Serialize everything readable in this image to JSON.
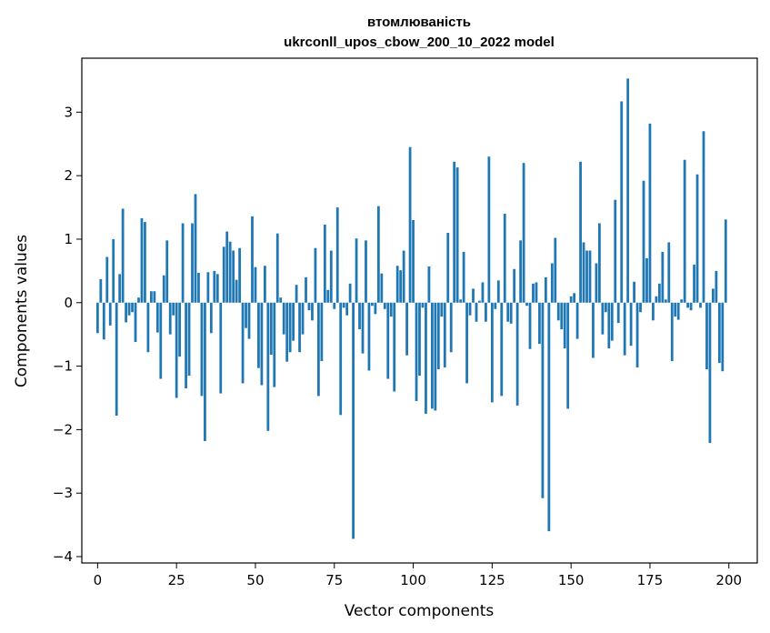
{
  "chart_data": {
    "type": "bar",
    "title": "втомлюваність",
    "subtitle": "ukrconll_upos_cbow_200_10_2022 model",
    "xlabel": "Vector components",
    "ylabel": "Components values",
    "xlim": [
      -5,
      209
    ],
    "ylim": [
      -4.1,
      3.85
    ],
    "xticks": [
      0,
      25,
      50,
      75,
      100,
      125,
      150,
      175,
      200
    ],
    "yticks": [
      -4,
      -3,
      -2,
      -1,
      0,
      1,
      2,
      3
    ],
    "ytick_labels": [
      "−4",
      "−3",
      "−2",
      "−1",
      "0",
      "1",
      "2",
      "3"
    ],
    "grid": false,
    "bar_color": "#1f77b4",
    "values": [
      -0.48,
      0.37,
      -0.58,
      0.72,
      -0.36,
      1.0,
      -1.78,
      0.45,
      1.48,
      -0.31,
      -0.2,
      -0.15,
      -0.62,
      0.08,
      1.33,
      1.27,
      -0.78,
      0.18,
      0.18,
      -0.47,
      -1.2,
      0.43,
      0.98,
      -0.5,
      -0.2,
      -1.5,
      -0.85,
      1.25,
      -1.35,
      -1.15,
      1.25,
      1.71,
      0.47,
      -1.47,
      -2.18,
      0.48,
      -0.48,
      0.5,
      0.45,
      -1.43,
      0.88,
      1.12,
      0.96,
      0.82,
      0.36,
      0.86,
      -1.27,
      -0.4,
      -0.57,
      1.36,
      0.56,
      -1.03,
      -1.3,
      0.58,
      -2.02,
      -0.82,
      -1.33,
      1.09,
      0.08,
      -0.5,
      -0.93,
      -0.78,
      -0.6,
      0.28,
      -0.78,
      -0.5,
      0.4,
      -0.12,
      -0.28,
      0.86,
      -1.47,
      -0.92,
      1.23,
      0.2,
      0.82,
      -0.1,
      1.5,
      -1.77,
      -0.08,
      -0.2,
      0.3,
      -3.72,
      1.01,
      -0.42,
      -0.8,
      0.98,
      -1.07,
      -0.05,
      -0.18,
      1.52,
      0.46,
      -0.1,
      -1.2,
      -0.22,
      -1.4,
      0.58,
      0.51,
      0.82,
      -0.83,
      2.45,
      1.3,
      -1.55,
      -1.15,
      -0.08,
      -1.75,
      0.57,
      -1.67,
      -1.7,
      -1.05,
      -0.22,
      -1.02,
      1.1,
      -0.78,
      2.22,
      2.13,
      0.05,
      0.8,
      -1.27,
      -0.2,
      0.22,
      -0.3,
      0.03,
      0.32,
      -0.3,
      2.3,
      -1.57,
      -0.1,
      0.35,
      -1.47,
      1.4,
      -0.3,
      -0.33,
      0.53,
      -1.62,
      0.98,
      2.2,
      -0.05,
      -0.73,
      0.3,
      0.32,
      -0.65,
      -3.08,
      0.4,
      -3.6,
      0.62,
      1.02,
      -0.28,
      -0.42,
      -0.72,
      -1.67,
      0.1,
      0.15,
      -0.57,
      2.22,
      0.95,
      0.82,
      0.82,
      -0.87,
      0.62,
      1.25,
      -0.5,
      -0.15,
      -0.72,
      -0.6,
      1.62,
      -0.32,
      3.17,
      -0.83,
      3.53,
      -0.68,
      0.33,
      -1.02,
      -0.15,
      1.92,
      0.7,
      2.82,
      -0.28,
      0.1,
      0.3,
      0.8,
      0.05,
      0.95,
      -0.92,
      -0.22,
      -0.27,
      0.05,
      2.25,
      -0.08,
      -0.12,
      0.6,
      2.02,
      -0.08,
      2.7,
      -1.05,
      -2.21,
      0.22,
      0.5,
      -0.95,
      -1.08,
      1.31
    ]
  }
}
